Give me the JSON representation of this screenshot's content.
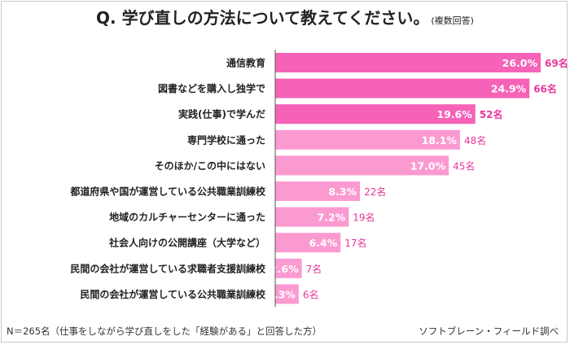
{
  "title": "Q.  学び直しの方法について教えてください。",
  "subtitle": "(複数回答)",
  "footer": {
    "note": "N＝265名（仕事をしながら学び直しをした「経験がある」と回答した方）",
    "source": "ソフトブレーン・フィールド調べ"
  },
  "colors": {
    "dark_bar": "#f562b8",
    "light_bar": "#fb9ad1",
    "value_text_dark": "#ffffff",
    "count_text": "#e8389b",
    "axis": "#555555"
  },
  "chart_data": {
    "type": "bar",
    "orientation": "horizontal",
    "title": "Q.  学び直しの方法について教えてください。",
    "subtitle": "(複数回答)",
    "categories": [
      "通信教育",
      "図書などを購入し独学で",
      "実践(仕事)で学んだ",
      "専門学校に通った",
      "そのほか/この中にはない",
      "都道府県や国が運営している公共職業訓練校",
      "地域のカルチャーセンターに通った",
      "社会人向けの公開講座（大学など）",
      "民間の会社が運営している求職者支援訓練校",
      "民間の会社が運営している公共職業訓練校"
    ],
    "values": [
      26.0,
      24.9,
      19.6,
      18.1,
      17.0,
      8.3,
      7.2,
      6.4,
      2.6,
      2.3
    ],
    "value_labels": [
      "26.0%",
      "24.9%",
      "19.6%",
      "18.1%",
      "17.0%",
      "8.3%",
      "7.2%",
      "6.4%",
      "2.6%",
      "2.3%"
    ],
    "counts": [
      "69名",
      "66名",
      "52名",
      "48名",
      "45名",
      "22名",
      "19名",
      "17名",
      "7名",
      "6名"
    ],
    "highlight_top": 3,
    "xlim": [
      0,
      26.0
    ],
    "grid": false,
    "legend": "none"
  }
}
